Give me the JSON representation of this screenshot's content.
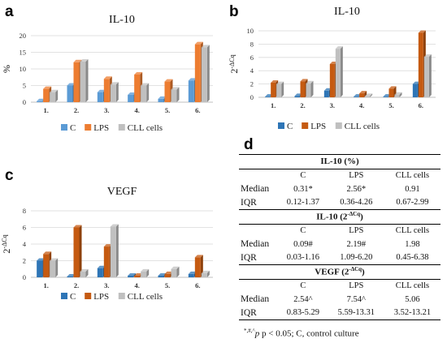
{
  "panels": {
    "a": {
      "letter": "a"
    },
    "b": {
      "letter": "b"
    },
    "c": {
      "letter": "c"
    },
    "d": {
      "letter": "d"
    }
  },
  "chart_data": [
    {
      "id": "a",
      "type": "bar",
      "title": "IL-10",
      "ylabel": "%",
      "ylim": [
        0,
        20
      ],
      "yticks": [
        0,
        5,
        10,
        15,
        20
      ],
      "categories": [
        "1.",
        "2.",
        "3.",
        "4.",
        "5.",
        "6."
      ],
      "grid": true,
      "legend_position": "bottom",
      "series": [
        {
          "name": "C",
          "color": "#5b9bd5",
          "values": [
            0.3,
            5.0,
            3.0,
            2.2,
            1.0,
            6.5
          ]
        },
        {
          "name": "LPS",
          "color": "#ed7d31",
          "values": [
            4.0,
            12.0,
            7.0,
            8.3,
            6.2,
            17.4
          ]
        },
        {
          "name": "CLL cells",
          "color": "#c0c0c0",
          "values": [
            3.0,
            12.2,
            5.3,
            5.0,
            3.8,
            16.5
          ]
        }
      ]
    },
    {
      "id": "b",
      "type": "bar",
      "title": "IL-10",
      "ylabel": "2-ΔCq",
      "ylim": [
        0,
        10
      ],
      "yticks": [
        0,
        2,
        4,
        6,
        8,
        10
      ],
      "categories": [
        "1.",
        "2.",
        "3.",
        "4.",
        "5.",
        "6."
      ],
      "grid": true,
      "legend_position": "bottom",
      "series": [
        {
          "name": "C",
          "color": "#2e75b6",
          "values": [
            0.1,
            0.2,
            1.0,
            0.1,
            0.1,
            2.0
          ]
        },
        {
          "name": "LPS",
          "color": "#c55a11",
          "values": [
            2.2,
            2.4,
            5.0,
            0.6,
            1.3,
            9.7
          ]
        },
        {
          "name": "CLL cells",
          "color": "#c0c0c0",
          "values": [
            2.0,
            2.1,
            7.3,
            0.2,
            0.4,
            6.1
          ]
        }
      ]
    },
    {
      "id": "c",
      "type": "bar",
      "title": "VEGF",
      "ylabel": "2-ΔCq",
      "ylim": [
        0,
        8
      ],
      "yticks": [
        0,
        2,
        4,
        6,
        8
      ],
      "categories": [
        "1.",
        "2.",
        "3.",
        "4.",
        "5.",
        "6."
      ],
      "grid": true,
      "legend_position": "bottom",
      "series": [
        {
          "name": "C",
          "color": "#2e75b6",
          "values": [
            2.0,
            0.1,
            1.1,
            0.2,
            0.2,
            0.4
          ]
        },
        {
          "name": "LPS",
          "color": "#c55a11",
          "values": [
            2.8,
            6.0,
            3.7,
            0.2,
            0.4,
            2.4
          ]
        },
        {
          "name": "CLL cells",
          "color": "#c0c0c0",
          "values": [
            2.0,
            0.7,
            6.1,
            0.7,
            1.0,
            0.5
          ]
        }
      ]
    },
    {
      "id": "d",
      "type": "table",
      "sections": [
        {
          "header": "IL-10  (%)",
          "columns": [
            "C",
            "LPS",
            "CLL cells"
          ],
          "rows": [
            {
              "label": "Median",
              "values": [
                "0.31*",
                "2.56*",
                "0.91"
              ]
            },
            {
              "label": "IQR",
              "values": [
                "0.12-1.37",
                "0.36-4.26",
                "0.67-2.99"
              ]
            }
          ]
        },
        {
          "header": "IL-10 (2-ΔCq)",
          "columns": [
            "C",
            "LPS",
            "CLL cells"
          ],
          "rows": [
            {
              "label": "Median",
              "values": [
                "0.09#",
                "2.19#",
                "1.98"
              ]
            },
            {
              "label": "IQR",
              "values": [
                "0.03-1.16",
                "1.09-6.20",
                "0.45-6.38"
              ]
            }
          ]
        },
        {
          "header": "VEGF (2-ΔCq)",
          "columns": [
            "C",
            "LPS",
            "CLL cells"
          ],
          "rows": [
            {
              "label": "Median",
              "values": [
                "2.54^",
                "7.54^",
                "5.06"
              ]
            },
            {
              "label": "IQR",
              "values": [
                "0.83-5.29",
                "5.59-13.31",
                "3.52-13.21"
              ]
            }
          ]
        }
      ]
    }
  ],
  "footnote": {
    "marks": "*,#,^",
    "text": " p < 0.05;  C, control culture"
  }
}
